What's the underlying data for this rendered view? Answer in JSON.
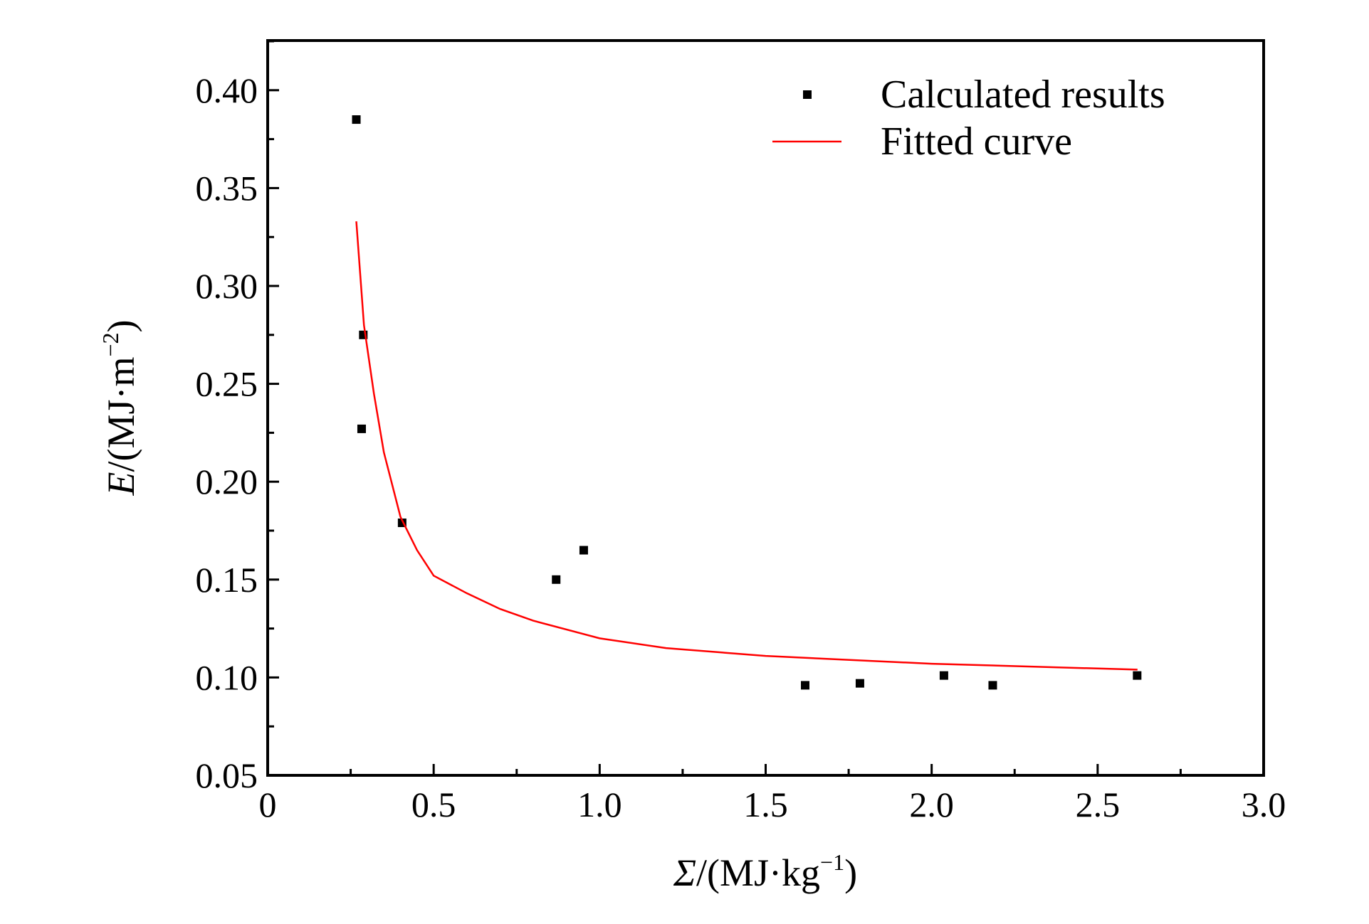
{
  "chart_data": {
    "type": "scatter",
    "title": "",
    "xlabel": {
      "symbol": "Σ",
      "unit": "/(MJ·kg",
      "sup": "−1",
      "close": ")"
    },
    "ylabel": {
      "symbol": "E",
      "unit": "/(MJ·m",
      "sup": "−2",
      "close": ")"
    },
    "xlim": [
      0,
      3.0
    ],
    "ylim": [
      0.05,
      0.425
    ],
    "x_ticks": [
      0,
      0.5,
      1.0,
      1.5,
      2.0,
      2.5,
      3.0
    ],
    "x_tick_labels": [
      "0",
      "0.5",
      "1.0",
      "1.5",
      "2.0",
      "2.5",
      "3.0"
    ],
    "y_ticks": [
      0.05,
      0.1,
      0.15,
      0.2,
      0.25,
      0.3,
      0.35,
      0.4
    ],
    "y_tick_labels": [
      "0.05",
      "0.10",
      "0.15",
      "0.20",
      "0.25",
      "0.30",
      "0.35",
      "0.40"
    ],
    "grid": false,
    "legend_position": "top-right",
    "series": [
      {
        "name": "Calculated results",
        "kind": "scatter",
        "color": "#000000",
        "x": [
          0.267,
          0.288,
          0.283,
          0.405,
          0.869,
          0.952,
          1.619,
          1.784,
          2.037,
          2.184,
          2.619
        ],
        "y": [
          0.385,
          0.275,
          0.227,
          0.179,
          0.15,
          0.165,
          0.096,
          0.097,
          0.101,
          0.096,
          0.101
        ]
      },
      {
        "name": "Fitted curve",
        "kind": "line",
        "color": "#ff0000",
        "x": [
          0.267,
          0.29,
          0.32,
          0.35,
          0.4,
          0.45,
          0.5,
          0.6,
          0.7,
          0.8,
          1.0,
          1.2,
          1.5,
          2.0,
          2.62
        ],
        "y": [
          0.333,
          0.28,
          0.245,
          0.215,
          0.182,
          0.165,
          0.152,
          0.143,
          0.135,
          0.129,
          0.12,
          0.115,
          0.111,
          0.107,
          0.104
        ]
      }
    ]
  }
}
